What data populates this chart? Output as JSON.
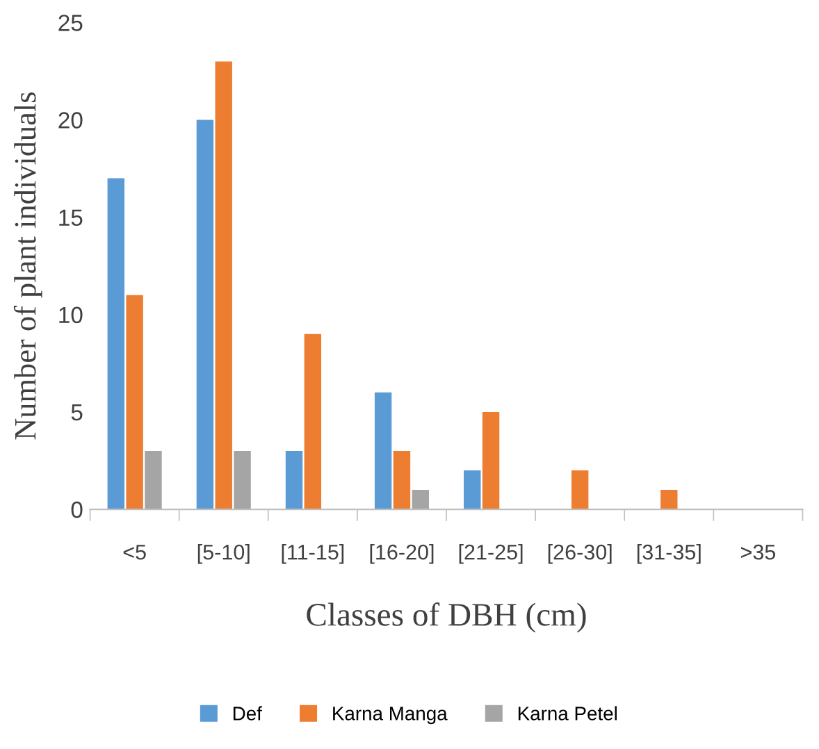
{
  "chart_data": {
    "type": "bar",
    "xlabel": "Classes of DBH (cm)",
    "ylabel": "Number of plant individuals",
    "categories": [
      "<5",
      "[5-10]",
      "[11-15]",
      "[16-20]",
      "[21-25]",
      "[26-30]",
      "[31-35]",
      ">35"
    ],
    "series": [
      {
        "name": "Def",
        "color": "#5b9bd5",
        "values": [
          17,
          20,
          3,
          6,
          2,
          0,
          0,
          0
        ]
      },
      {
        "name": "Karna Manga",
        "color": "#ed7d31",
        "values": [
          11,
          23,
          9,
          3,
          5,
          2,
          1,
          0
        ]
      },
      {
        "name": "Karna Petel",
        "color": "#a5a5a5",
        "values": [
          3,
          3,
          0,
          1,
          0,
          0,
          0,
          0
        ]
      }
    ],
    "ylim": [
      0,
      25
    ],
    "yticks": [
      0,
      5,
      10,
      15,
      20,
      25
    ],
    "grid": false,
    "legend": "bottom"
  }
}
